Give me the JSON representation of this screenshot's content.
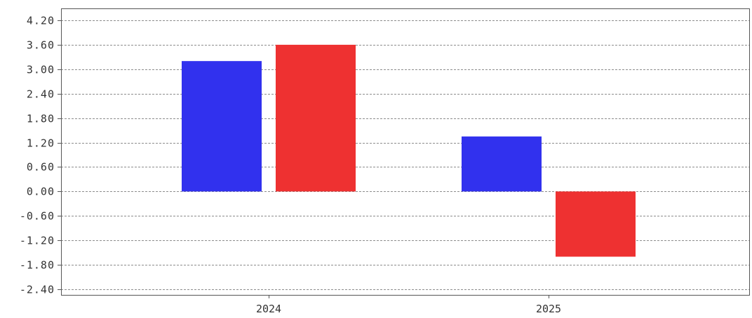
{
  "chart_data": {
    "type": "bar",
    "categories": [
      "2024",
      "2025"
    ],
    "series": [
      {
        "color": "#3131ee",
        "values": [
          3.2,
          1.35
        ]
      },
      {
        "color": "#ee3131",
        "values": [
          3.6,
          -1.6
        ]
      }
    ],
    "ylim": [
      -2.4,
      4.2
    ],
    "y_ticks": [
      "4.20",
      "3.60",
      "3.00",
      "2.40",
      "1.80",
      "1.20",
      "0.60",
      "0.00",
      "-0.60",
      "-1.20",
      "-1.80",
      "-2.40"
    ],
    "grid": true,
    "legend": "none"
  }
}
